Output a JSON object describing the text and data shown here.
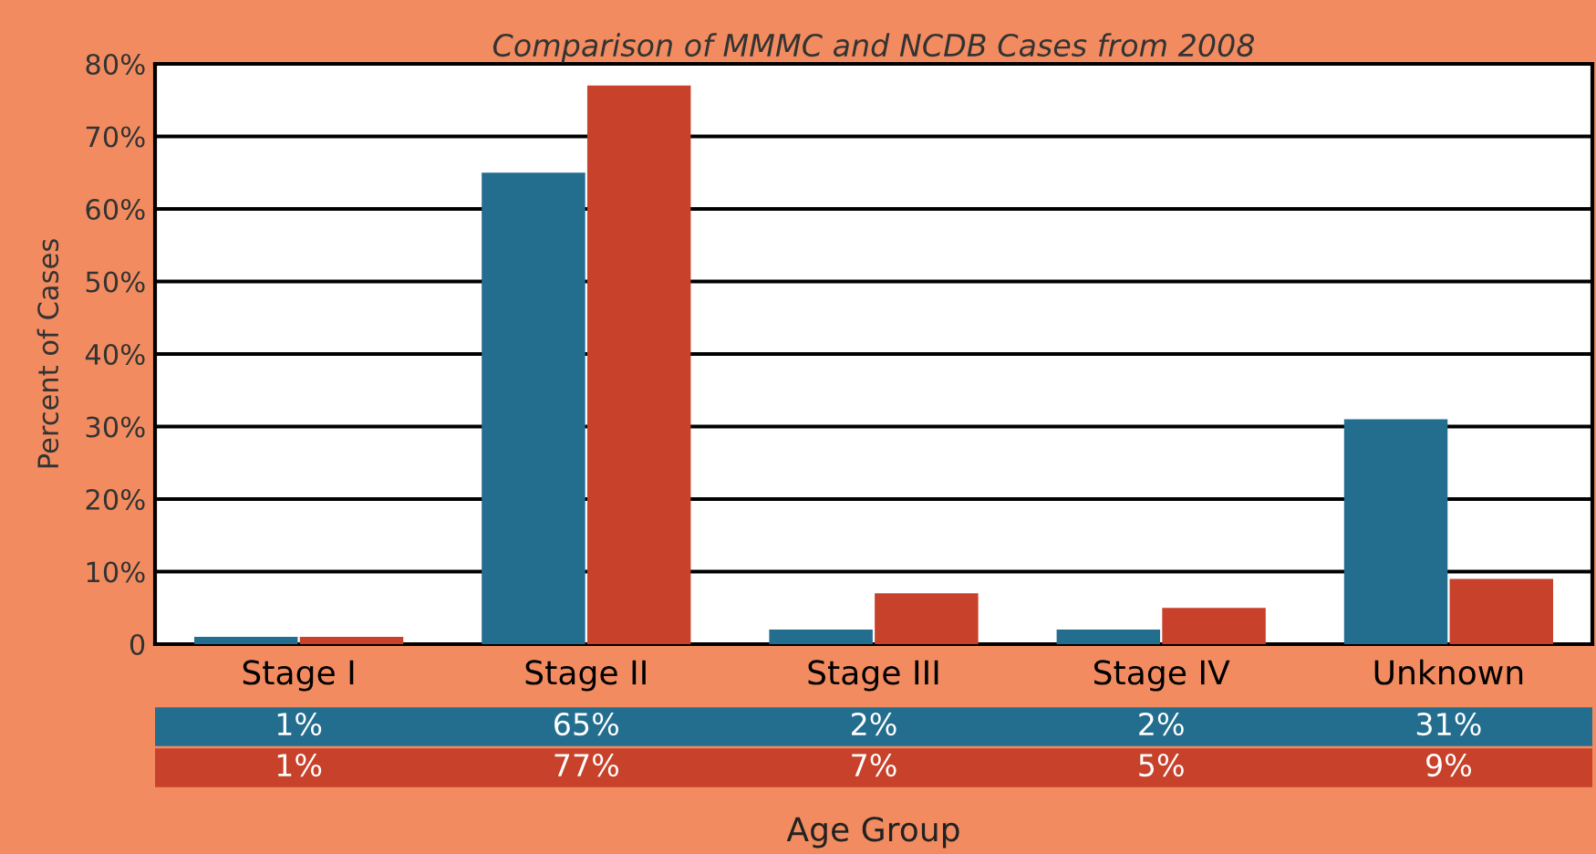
{
  "chart_data": {
    "type": "bar",
    "title": "Comparison of MMMC and NCDB Cases from 2008",
    "xlabel": "Age Group",
    "ylabel": "Percent of Cases",
    "categories": [
      "Stage I",
      "Stage II",
      "Stage III",
      "Stage IV",
      "Unknown"
    ],
    "series": [
      {
        "color": "#236e8f",
        "values": [
          1,
          65,
          2,
          2,
          31
        ],
        "value_labels": [
          "1%",
          "65%",
          "2%",
          "2%",
          "31%"
        ]
      },
      {
        "color": "#c8412a",
        "values": [
          1,
          77,
          7,
          5,
          9
        ],
        "value_labels": [
          "1%",
          "77%",
          "7%",
          "5%",
          "9%"
        ]
      }
    ],
    "ylim": [
      0,
      80
    ],
    "yticks": [
      {
        "value": 0,
        "label": "0"
      },
      {
        "value": 10,
        "label": "10%"
      },
      {
        "value": 20,
        "label": "20%"
      },
      {
        "value": 30,
        "label": "30%"
      },
      {
        "value": 40,
        "label": "40%"
      },
      {
        "value": 50,
        "label": "50%"
      },
      {
        "value": 60,
        "label": "60%"
      },
      {
        "value": 70,
        "label": "70%"
      },
      {
        "value": 80,
        "label": "80%"
      }
    ],
    "grid": "y",
    "legend": false
  }
}
